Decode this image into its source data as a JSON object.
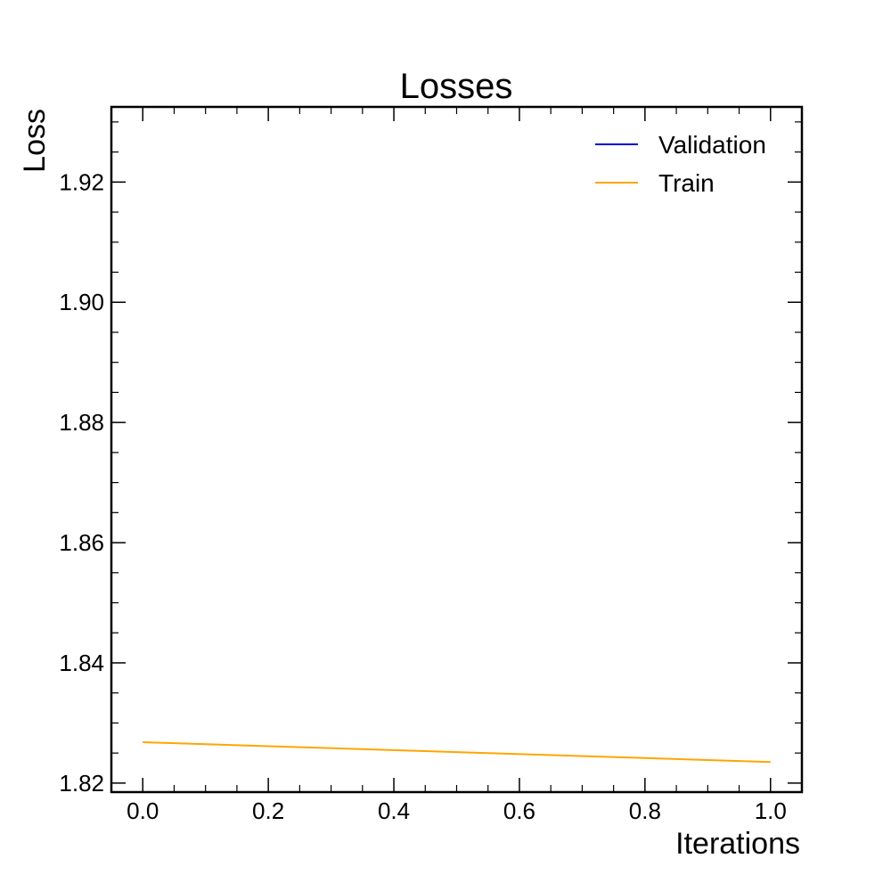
{
  "chart_data": {
    "type": "line",
    "title": "Losses",
    "xlabel": "Iterations",
    "ylabel": "Loss",
    "xlim": [
      -0.05,
      1.05
    ],
    "ylim": [
      1.8185,
      1.9325
    ],
    "xticks": [
      0.0,
      0.2,
      0.4,
      0.6,
      0.8,
      1.0
    ],
    "xtick_labels": [
      "0.0",
      "0.2",
      "0.4",
      "0.6",
      "0.8",
      "1.0"
    ],
    "yticks": [
      1.82,
      1.84,
      1.86,
      1.88,
      1.9,
      1.92
    ],
    "ytick_labels": [
      "1.82",
      "1.84",
      "1.86",
      "1.88",
      "1.90",
      "1.92"
    ],
    "grid": false,
    "legend_position": "top-right",
    "series": [
      {
        "name": "Validation",
        "color": "#0000cc",
        "x": [],
        "y": []
      },
      {
        "name": "Train",
        "color": "#ffa500",
        "x": [
          0.0,
          1.0
        ],
        "y": [
          1.8268,
          1.8235
        ]
      }
    ]
  }
}
